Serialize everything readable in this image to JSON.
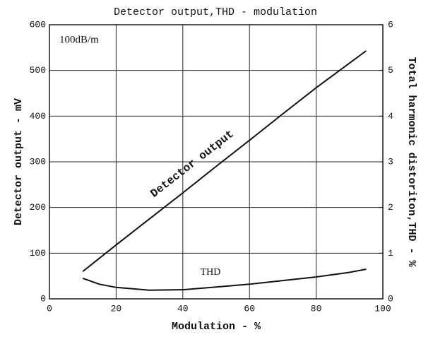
{
  "chart_data": {
    "type": "line",
    "title": "Detector output,THD - modulation",
    "xlabel": "Modulation - %",
    "ylabel": "Detector output - mV",
    "y2label": "Total harmonic distoriton,THD - %",
    "annotations": [
      "100dB/m"
    ],
    "xlim": [
      0,
      100
    ],
    "xticks": [
      0,
      20,
      40,
      60,
      80,
      100
    ],
    "ylim": [
      0,
      600
    ],
    "yticks": [
      0,
      100,
      200,
      300,
      400,
      500,
      600
    ],
    "y2lim": [
      0,
      6
    ],
    "y2ticks": [
      0,
      1,
      2,
      3,
      4,
      5,
      6
    ],
    "grid": true,
    "series": [
      {
        "name": "Detector output",
        "color": "#111111",
        "x": [
          10,
          20,
          30,
          40,
          50,
          60,
          70,
          80,
          90,
          95
        ],
        "values": [
          60,
          118,
          175,
          232,
          290,
          347,
          405,
          462,
          516,
          543
        ]
      },
      {
        "name": "THD",
        "color": "#111111",
        "axis": "y2",
        "x": [
          10,
          15,
          20,
          30,
          40,
          50,
          60,
          70,
          80,
          90,
          95
        ],
        "values": [
          0.45,
          0.32,
          0.25,
          0.19,
          0.2,
          0.26,
          0.32,
          0.4,
          0.48,
          0.58,
          0.65
        ]
      }
    ]
  }
}
